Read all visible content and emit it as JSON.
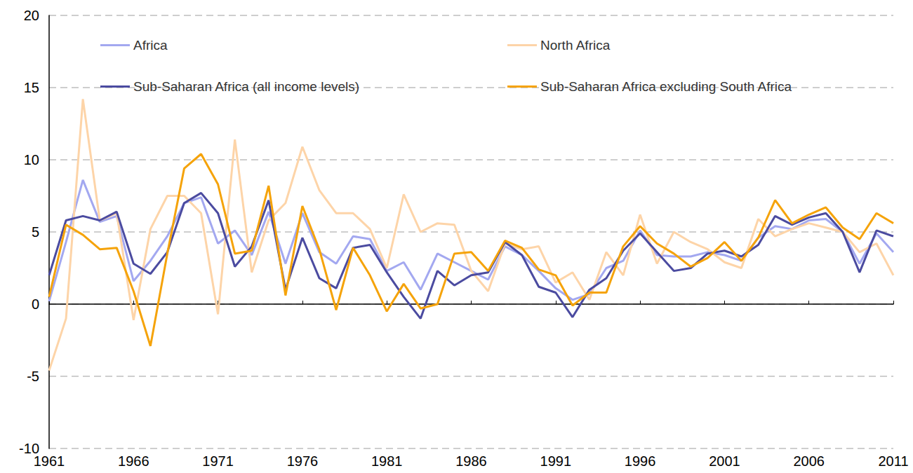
{
  "chart_data": {
    "type": "line",
    "x": [
      1961,
      1962,
      1963,
      1964,
      1965,
      1966,
      1967,
      1968,
      1969,
      1970,
      1971,
      1972,
      1973,
      1974,
      1975,
      1976,
      1977,
      1978,
      1979,
      1980,
      1981,
      1982,
      1983,
      1984,
      1985,
      1986,
      1987,
      1988,
      1989,
      1990,
      1991,
      1992,
      1993,
      1994,
      1995,
      1996,
      1997,
      1998,
      1999,
      2000,
      2001,
      2002,
      2003,
      2004,
      2005,
      2006,
      2007,
      2008,
      2009,
      2010,
      2011
    ],
    "xlim": [
      1961,
      2011
    ],
    "xticks": [
      1961,
      1966,
      1971,
      1976,
      1981,
      1986,
      1991,
      1996,
      2001,
      2006,
      2011
    ],
    "ylim": [
      -10,
      20
    ],
    "yticks": [
      -10,
      -5,
      0,
      5,
      10,
      15,
      20
    ],
    "grid": true,
    "legend": "top",
    "series": [
      {
        "name": "Africa",
        "color": "#a3a8f0",
        "values": [
          0.2,
          4.3,
          8.6,
          5.7,
          6.1,
          1.6,
          3.0,
          4.7,
          7.0,
          7.4,
          4.2,
          5.1,
          3.4,
          6.4,
          2.8,
          6.3,
          3.6,
          2.8,
          4.7,
          4.5,
          2.3,
          2.9,
          1.0,
          3.5,
          2.9,
          2.3,
          1.7,
          4.0,
          3.4,
          2.3,
          1.1,
          0.3,
          0.7,
          2.5,
          3.0,
          5.1,
          3.4,
          3.3,
          3.3,
          3.6,
          3.4,
          3.0,
          4.6,
          5.4,
          5.2,
          5.8,
          5.9,
          5.0,
          2.8,
          4.9,
          3.6
        ]
      },
      {
        "name": "North Africa",
        "color": "#fdd4a8",
        "values": [
          -4.6,
          -1.0,
          14.2,
          5.8,
          6.3,
          -1.1,
          5.2,
          7.5,
          7.5,
          6.3,
          -0.7,
          11.4,
          2.2,
          5.8,
          7.0,
          10.9,
          7.9,
          6.3,
          6.3,
          5.2,
          2.5,
          7.6,
          5.0,
          5.6,
          5.5,
          2.3,
          0.9,
          4.2,
          3.8,
          4.0,
          1.5,
          2.2,
          0.3,
          3.6,
          2.0,
          6.2,
          2.8,
          5.0,
          4.3,
          3.8,
          2.9,
          2.5,
          5.9,
          4.7,
          5.2,
          5.6,
          5.3,
          5.0,
          3.6,
          4.2,
          2.0
        ]
      },
      {
        "name": "Sub-Saharan Africa (all income levels)",
        "color": "#4b4ba0",
        "values": [
          2.0,
          5.8,
          6.1,
          5.8,
          6.4,
          2.8,
          2.1,
          3.6,
          7.0,
          7.7,
          6.3,
          2.6,
          4.0,
          7.2,
          1.0,
          4.6,
          1.8,
          1.1,
          3.9,
          4.1,
          2.2,
          0.5,
          -1.0,
          2.3,
          1.3,
          2.0,
          2.2,
          4.3,
          3.4,
          1.2,
          0.8,
          -0.9,
          1.0,
          1.8,
          3.7,
          4.9,
          3.6,
          2.3,
          2.5,
          3.5,
          3.7,
          3.3,
          4.1,
          6.1,
          5.5,
          6.0,
          6.3,
          5.0,
          2.2,
          5.1,
          4.7
        ]
      },
      {
        "name": "Sub-Saharan Africa excluding South Africa",
        "color": "#f5a30a",
        "values": [
          0.5,
          5.5,
          4.8,
          3.8,
          3.9,
          0.9,
          -2.9,
          3.5,
          9.4,
          10.4,
          8.3,
          3.5,
          3.7,
          8.2,
          0.6,
          6.8,
          3.8,
          -0.4,
          3.9,
          2.0,
          -0.5,
          1.4,
          -0.3,
          0.0,
          3.5,
          3.6,
          2.3,
          4.4,
          3.9,
          2.4,
          2.0,
          -0.1,
          0.8,
          0.8,
          4.0,
          5.4,
          4.2,
          3.5,
          2.6,
          3.2,
          4.3,
          3.0,
          4.6,
          7.2,
          5.6,
          6.2,
          6.7,
          5.3,
          4.5,
          6.3,
          5.6
        ]
      }
    ]
  }
}
